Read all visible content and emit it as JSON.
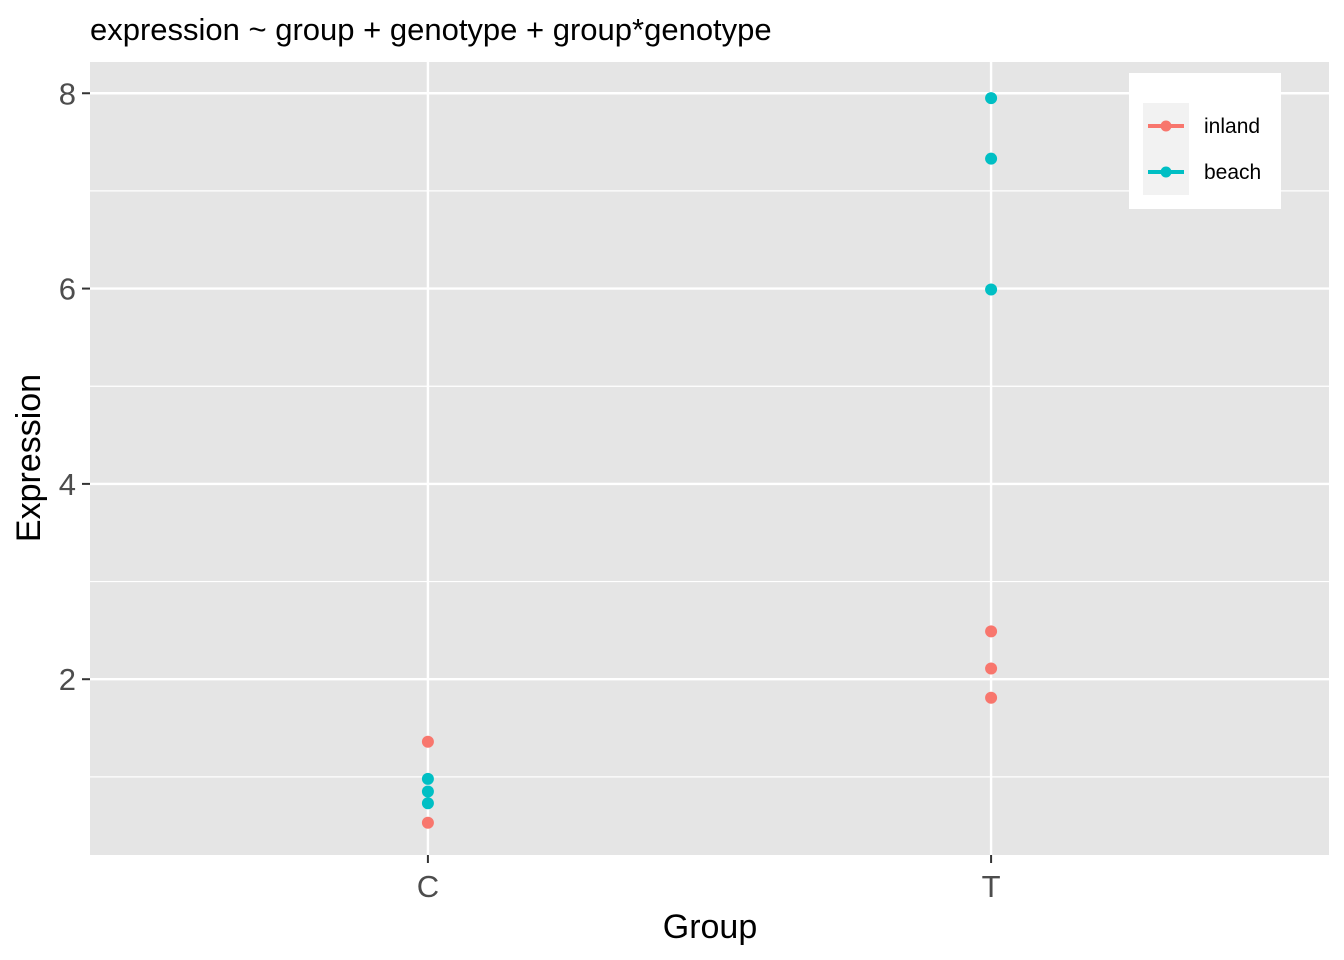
{
  "chart_data": {
    "type": "scatter",
    "title": "expression ~ group + genotype + group*genotype",
    "xlabel": "Group",
    "ylabel": "Expression",
    "categories": [
      "C",
      "T"
    ],
    "yticks": [
      2,
      4,
      6,
      8
    ],
    "ylim": [
      0.2,
      8.32
    ],
    "grid": true,
    "legend_position": "top-right",
    "series": [
      {
        "name": "inland",
        "color": "#F8766D",
        "points": [
          {
            "x": "C",
            "y": 1.36
          },
          {
            "x": "C",
            "y": 0.53
          },
          {
            "x": "T",
            "y": 2.49
          },
          {
            "x": "T",
            "y": 2.11
          },
          {
            "x": "T",
            "y": 1.81
          }
        ]
      },
      {
        "name": "beach",
        "color": "#00BFC4",
        "points": [
          {
            "x": "C",
            "y": 0.98
          },
          {
            "x": "C",
            "y": 0.85
          },
          {
            "x": "C",
            "y": 0.73
          },
          {
            "x": "T",
            "y": 7.95
          },
          {
            "x": "T",
            "y": 7.33
          },
          {
            "x": "T",
            "y": 5.99
          }
        ]
      }
    ]
  }
}
